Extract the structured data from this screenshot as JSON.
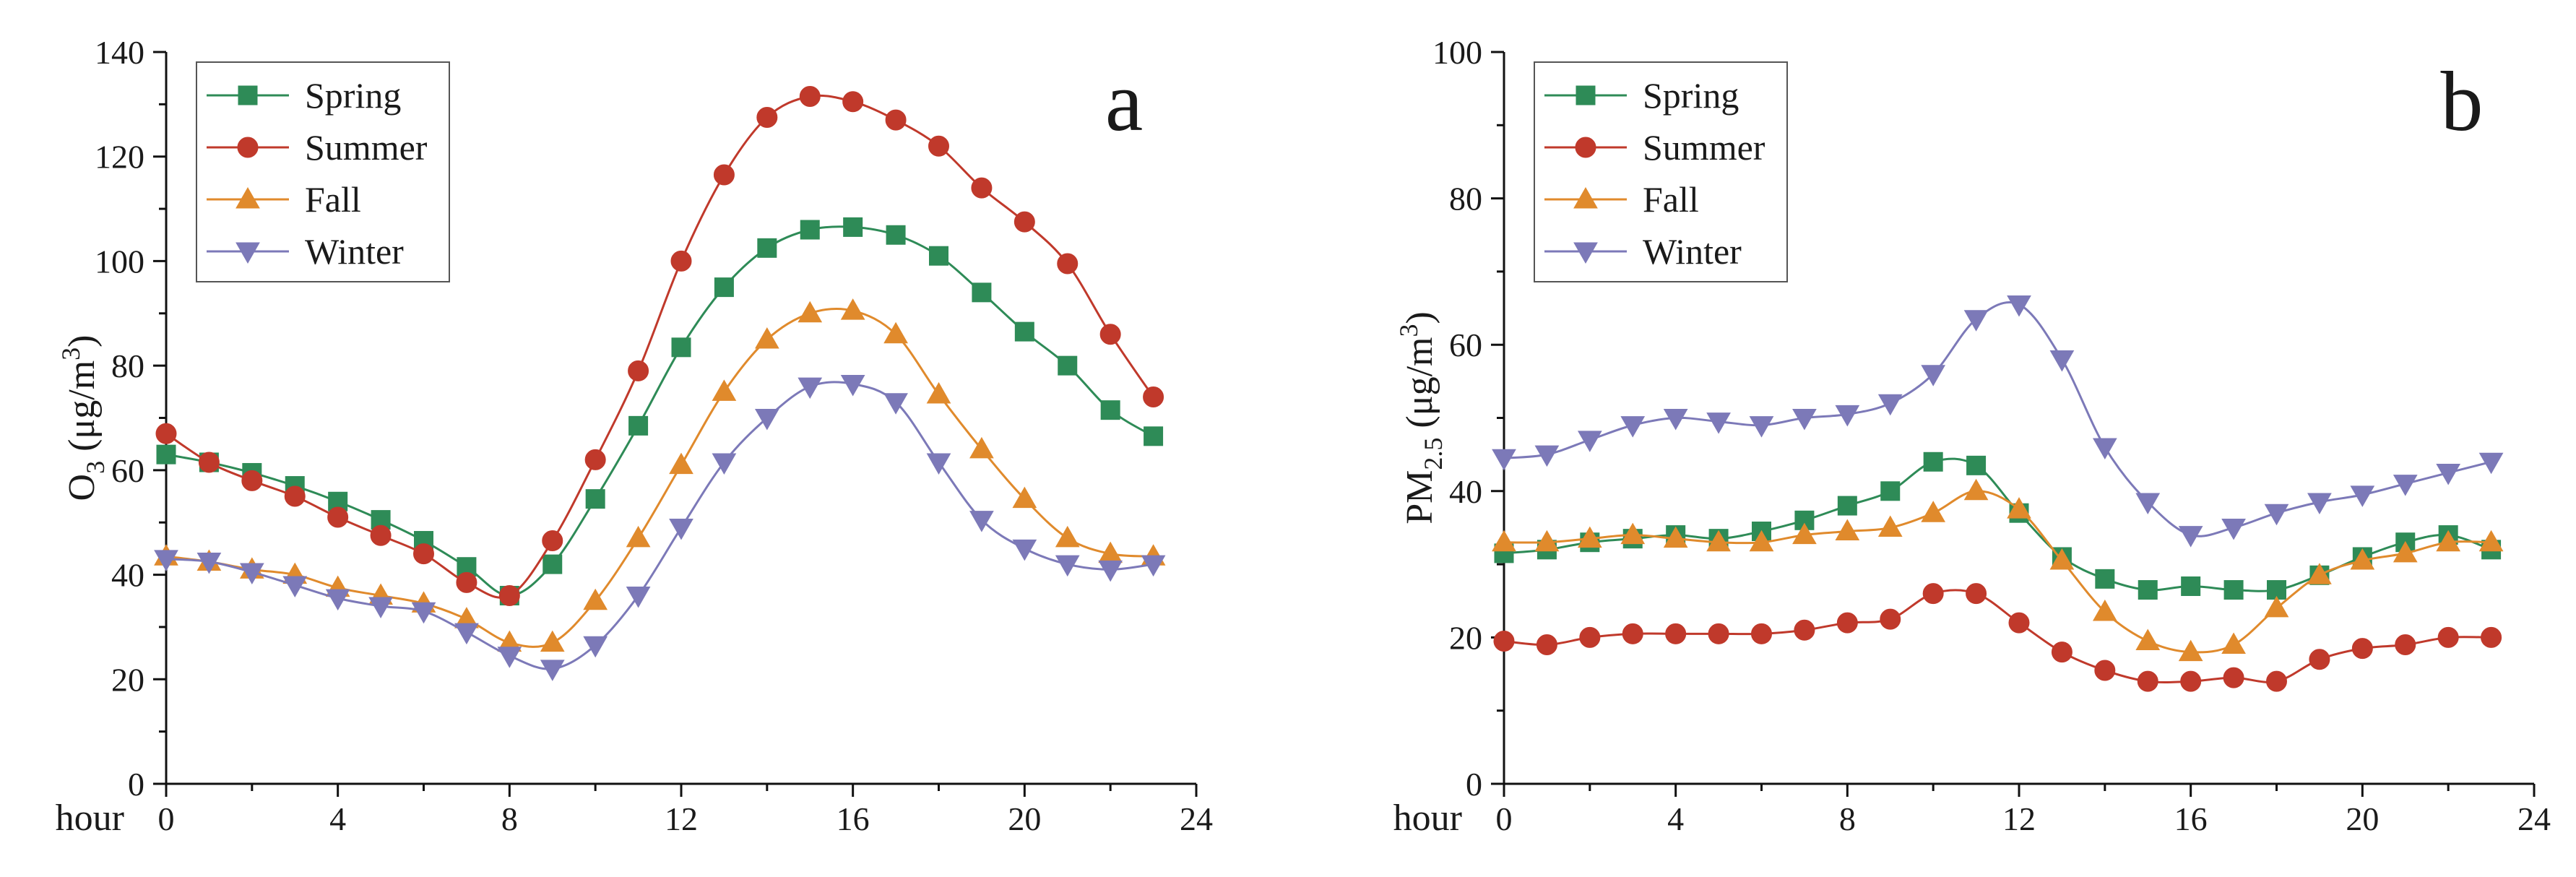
{
  "chart_data": [
    {
      "type": "line",
      "panel_letter": "a",
      "title": "",
      "xlabel": "hour",
      "ylabel": "O3 (μg/m3)",
      "ylabel_parts": {
        "base": "O",
        "sub": "3",
        "pre": " (μg/m",
        "sup": "3",
        "post": ")"
      },
      "xlim": [
        0,
        24
      ],
      "ylim": [
        0,
        140
      ],
      "xticks": [
        0,
        4,
        8,
        12,
        16,
        20,
        24
      ],
      "yticks": [
        0,
        20,
        40,
        60,
        80,
        100,
        120,
        140
      ],
      "grid": false,
      "legend_position": "top-left",
      "x": [
        0,
        1,
        2,
        3,
        4,
        5,
        6,
        7,
        8,
        9,
        10,
        11,
        12,
        13,
        14,
        15,
        16,
        17,
        18,
        19,
        20,
        21,
        22,
        23
      ],
      "series": [
        {
          "name": "Spring",
          "color": "#2e8b57",
          "marker": "square",
          "values": [
            63,
            61.5,
            59.5,
            57,
            54,
            50.5,
            46.5,
            41.5,
            36,
            42,
            54.5,
            68.5,
            83.5,
            95,
            102.5,
            106,
            106.5,
            105,
            101,
            94,
            86.5,
            80,
            71.5,
            66.5
          ]
        },
        {
          "name": "Summer",
          "color": "#c0392b",
          "marker": "circle",
          "values": [
            67,
            61.5,
            58,
            55,
            51,
            47.5,
            44,
            38.5,
            36,
            46.5,
            62,
            79,
            100,
            116.5,
            127.5,
            131.5,
            130.5,
            127,
            122,
            114,
            107.5,
            99.5,
            86,
            74
          ]
        },
        {
          "name": "Fall",
          "color": "#e08a2c",
          "marker": "triangle-up",
          "values": [
            43.5,
            42.5,
            41,
            40,
            37.5,
            36,
            34.5,
            31.5,
            27,
            27,
            35,
            47,
            61,
            75,
            85,
            90,
            90.5,
            86,
            74.5,
            64,
            54.5,
            47,
            44,
            43.5
          ]
        },
        {
          "name": "Winter",
          "color": "#7c79b8",
          "marker": "triangle-down",
          "values": [
            43,
            42.5,
            40.5,
            38,
            35.5,
            34,
            33,
            29,
            24.5,
            22,
            26.5,
            36,
            49,
            61.5,
            70,
            76,
            76.5,
            73,
            61.5,
            50.5,
            45,
            42,
            41,
            42
          ]
        }
      ]
    },
    {
      "type": "line",
      "panel_letter": "b",
      "title": "",
      "xlabel": "hour",
      "ylabel": "PM2.5 (μg/m3)",
      "ylabel_parts": {
        "base": "PM",
        "sub": "2.5",
        "pre": " (μg/m",
        "sup": "3",
        "post": ")"
      },
      "xlim": [
        0,
        24
      ],
      "ylim": [
        0,
        100
      ],
      "xticks": [
        0,
        4,
        8,
        12,
        16,
        20,
        24
      ],
      "yticks": [
        0,
        20,
        40,
        60,
        80,
        100
      ],
      "grid": false,
      "legend_position": "top-left",
      "x": [
        0,
        1,
        2,
        3,
        4,
        5,
        6,
        7,
        8,
        9,
        10,
        11,
        12,
        13,
        14,
        15,
        16,
        17,
        18,
        19,
        20,
        21,
        22,
        23
      ],
      "series": [
        {
          "name": "Spring",
          "color": "#2e8b57",
          "marker": "square",
          "values": [
            31.5,
            32,
            33,
            33.5,
            34,
            33.5,
            34.5,
            36,
            38,
            40,
            44,
            43.5,
            37,
            31,
            28,
            26.5,
            27,
            26.5,
            26.5,
            28.5,
            31,
            33,
            34,
            32
          ]
        },
        {
          "name": "Summer",
          "color": "#c0392b",
          "marker": "circle",
          "values": [
            19.5,
            19,
            20,
            20.5,
            20.5,
            20.5,
            20.5,
            21,
            22,
            22.5,
            26,
            26,
            22,
            18,
            15.5,
            14,
            14,
            14.5,
            14,
            17,
            18.5,
            19,
            20,
            20
          ]
        },
        {
          "name": "Fall",
          "color": "#e08a2c",
          "marker": "triangle-up",
          "values": [
            33,
            33,
            33.5,
            34,
            33.5,
            33,
            33,
            34,
            34.5,
            35,
            37,
            40,
            37.5,
            30.5,
            23.5,
            19.5,
            18,
            19,
            24,
            28.5,
            30.5,
            31.5,
            33,
            33
          ]
        },
        {
          "name": "Winter",
          "color": "#7c79b8",
          "marker": "triangle-down",
          "values": [
            44.5,
            45,
            47,
            49,
            50,
            49.5,
            49,
            50,
            50.5,
            52,
            56,
            63.5,
            65.5,
            58,
            46,
            38.5,
            34,
            35,
            37,
            38.5,
            39.5,
            41,
            42.5,
            44
          ]
        }
      ]
    }
  ]
}
